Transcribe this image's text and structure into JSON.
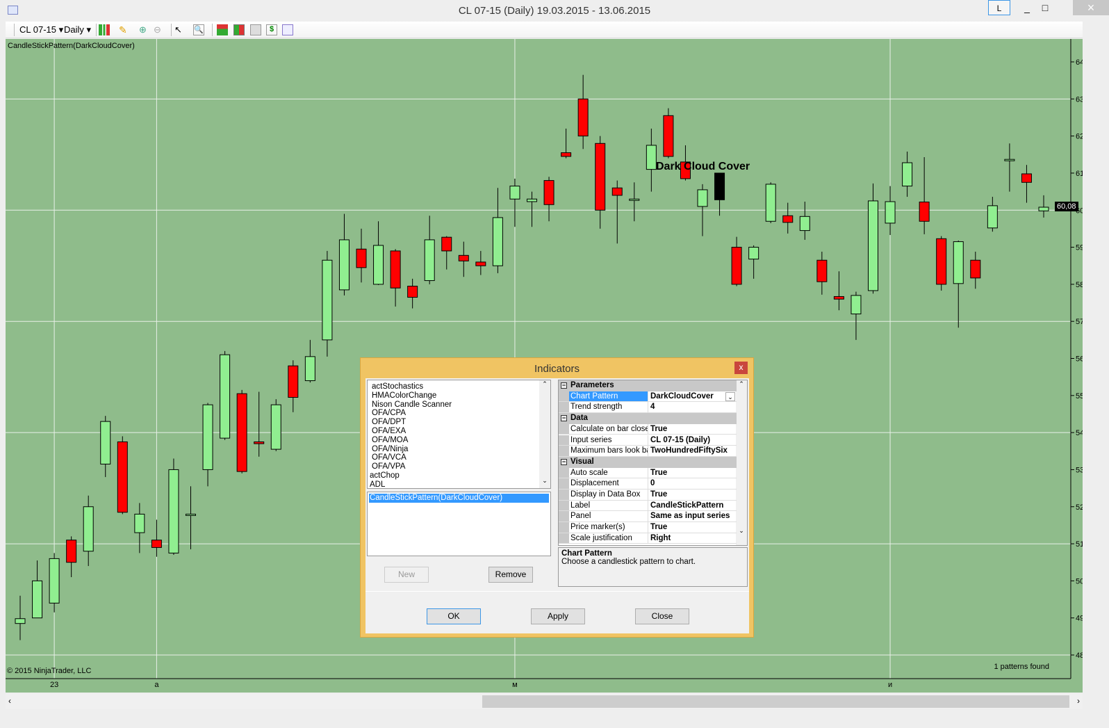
{
  "window": {
    "title": "CL 07-15 (Daily)  19.03.2015 - 13.06.2015",
    "layout_btn": "L",
    "minimize": "_",
    "maximize": "□",
    "close": "×"
  },
  "toolbar": {
    "instrument": "CL 07-15",
    "interval": "Daily",
    "icons": [
      "bar-type-icon",
      "pencil-draw-icon",
      "zoom-in-icon",
      "zoom-out-icon",
      "cursor-icon",
      "magnifier-icon",
      "indicators-icon",
      "strategies-icon",
      "chart-properties-icon",
      "dollar-icon",
      "data-box-icon"
    ]
  },
  "chart": {
    "indicator_label": "CandleStickPattern(DarkCloudCover)",
    "pattern_text": "Dark Cloud Cover",
    "copyright": "© 2015 NinjaTrader, LLC",
    "patterns_found": "1 patterns found",
    "last_price": "60,08",
    "colors": {
      "background": "#8fbc8b",
      "up": "#90ee90",
      "down": "#ff0000",
      "pattern": "#000000"
    }
  },
  "chart_data": {
    "type": "candlestick",
    "ylim": [
      48,
      64
    ],
    "y_ticks": [
      "64,00",
      "63,00",
      "62,00",
      "61,00",
      "60,00",
      "59,00",
      "58,00",
      "57,00",
      "56,00",
      "55,00",
      "54,00",
      "53,00",
      "52,00",
      "51,00",
      "50,00",
      "49,00",
      "48,00"
    ],
    "x_ticks": [
      {
        "label": "23",
        "bar": 2
      },
      {
        "label": "а",
        "bar": 8
      },
      {
        "label": "м",
        "bar": 29
      },
      {
        "label": "и",
        "bar": 51
      }
    ],
    "pattern_bar": 41,
    "ohlc": [
      [
        48.85,
        49.6,
        48.4,
        48.98
      ],
      [
        49.0,
        50.55,
        49.0,
        50.0
      ],
      [
        49.4,
        50.75,
        49.15,
        50.6
      ],
      [
        51.1,
        51.2,
        50.1,
        50.5
      ],
      [
        50.8,
        52.3,
        50.4,
        52.0
      ],
      [
        53.15,
        54.45,
        52.8,
        54.3
      ],
      [
        53.75,
        53.9,
        51.8,
        51.85
      ],
      [
        51.3,
        52.1,
        50.75,
        51.8
      ],
      [
        51.1,
        51.65,
        50.65,
        50.9
      ],
      [
        50.75,
        53.3,
        50.7,
        53.0
      ],
      [
        51.8,
        52.55,
        50.85,
        51.8
      ],
      [
        53.0,
        54.8,
        52.55,
        54.75
      ],
      [
        53.85,
        56.2,
        53.8,
        56.1
      ],
      [
        55.05,
        55.15,
        52.9,
        52.95
      ],
      [
        53.75,
        55.1,
        53.35,
        53.7
      ],
      [
        53.55,
        54.9,
        53.5,
        54.75
      ],
      [
        55.8,
        55.95,
        54.55,
        54.95
      ],
      [
        55.4,
        56.5,
        55.35,
        56.05
      ],
      [
        56.5,
        58.9,
        56.05,
        58.65
      ],
      [
        57.85,
        59.9,
        57.7,
        59.2
      ],
      [
        58.95,
        59.5,
        58.05,
        58.45
      ],
      [
        58.0,
        59.7,
        57.98,
        59.05
      ],
      [
        58.9,
        58.95,
        57.4,
        57.9
      ],
      [
        57.95,
        58.15,
        57.35,
        57.65
      ],
      [
        58.1,
        59.85,
        58.0,
        59.2
      ],
      [
        59.27,
        59.3,
        58.4,
        58.9
      ],
      [
        58.78,
        59.15,
        58.2,
        58.63
      ],
      [
        58.6,
        58.9,
        58.25,
        58.5
      ],
      [
        58.5,
        60.6,
        58.3,
        59.8
      ],
      [
        60.3,
        60.85,
        59.55,
        60.65
      ],
      [
        60.23,
        60.5,
        59.55,
        60.3
      ],
      [
        60.8,
        60.9,
        59.7,
        60.15
      ],
      [
        61.55,
        62.2,
        61.4,
        61.45
      ],
      [
        63.0,
        63.65,
        61.65,
        62.0
      ],
      [
        61.8,
        62.0,
        59.5,
        60.0
      ],
      [
        60.6,
        60.8,
        59.1,
        60.4
      ],
      [
        60.3,
        60.75,
        59.7,
        60.3
      ],
      [
        61.1,
        62.2,
        60.5,
        61.75
      ],
      [
        62.55,
        62.75,
        61.4,
        61.45
      ],
      [
        61.3,
        61.75,
        60.8,
        60.85
      ],
      [
        60.1,
        60.7,
        59.3,
        60.55
      ],
      [
        61.0,
        61.0,
        59.85,
        60.28
      ],
      [
        59.0,
        59.28,
        57.95,
        58.0
      ],
      [
        58.68,
        59.05,
        58.15,
        59.0
      ],
      [
        59.7,
        60.75,
        59.65,
        60.7
      ],
      [
        59.85,
        60.2,
        59.37,
        59.67
      ],
      [
        59.45,
        60.23,
        59.2,
        59.83
      ],
      [
        58.65,
        58.88,
        57.72,
        58.07
      ],
      [
        57.67,
        58.35,
        57.3,
        57.6
      ],
      [
        57.2,
        57.8,
        56.5,
        57.7
      ],
      [
        57.83,
        60.72,
        57.75,
        60.25
      ],
      [
        59.65,
        60.65,
        59.33,
        60.23
      ],
      [
        60.65,
        61.58,
        60.36,
        61.28
      ],
      [
        60.22,
        61.43,
        59.35,
        59.7
      ],
      [
        59.23,
        59.3,
        57.83,
        58.0
      ],
      [
        58.02,
        59.18,
        56.83,
        59.15
      ],
      [
        58.65,
        58.88,
        57.88,
        58.17
      ],
      [
        59.52,
        60.36,
        59.42,
        60.12
      ],
      [
        61.37,
        61.8,
        60.5,
        61.37
      ],
      [
        60.98,
        61.22,
        60.2,
        60.75
      ],
      [
        59.98,
        60.4,
        59.8,
        60.08
      ]
    ]
  },
  "dialog": {
    "title": "Indicators",
    "close": "x",
    "available": [
      "actStochastics",
      "HMAColorChange",
      "Nison Candle Scanner",
      "OFA/CPA",
      "OFA/DPT",
      "OFA/EXA",
      "OFA/MOA",
      "OFA/Ninja",
      "OFA/VCA",
      "OFA/VPA",
      "actChop",
      "ADL"
    ],
    "applied": [
      "CandleStickPattern(DarkCloudCover)"
    ],
    "new_btn": "New",
    "remove_btn": "Remove",
    "ok_btn": "OK",
    "apply_btn": "Apply",
    "close_btn": "Close",
    "properties": [
      {
        "category": "Parameters",
        "rows": [
          {
            "name": "Chart Pattern",
            "value": "DarkCloudCover",
            "selected": true
          },
          {
            "name": "Trend strength",
            "value": "4"
          }
        ]
      },
      {
        "category": "Data",
        "rows": [
          {
            "name": "Calculate on bar close",
            "value": "True"
          },
          {
            "name": "Input series",
            "value": "CL 07-15 (Daily)"
          },
          {
            "name": "Maximum bars look ba",
            "value": "TwoHundredFiftySix"
          }
        ]
      },
      {
        "category": "Visual",
        "rows": [
          {
            "name": "Auto scale",
            "value": "True"
          },
          {
            "name": "Displacement",
            "value": "0"
          },
          {
            "name": "Display in Data Box",
            "value": "True"
          },
          {
            "name": "Label",
            "value": "CandleStickPattern"
          },
          {
            "name": "Panel",
            "value": "Same as input series"
          },
          {
            "name": "Price marker(s)",
            "value": "True"
          },
          {
            "name": "Scale justification",
            "value": "Right"
          }
        ]
      }
    ],
    "desc_title": "Chart Pattern",
    "desc_text": "Choose a candlestick pattern to chart."
  }
}
